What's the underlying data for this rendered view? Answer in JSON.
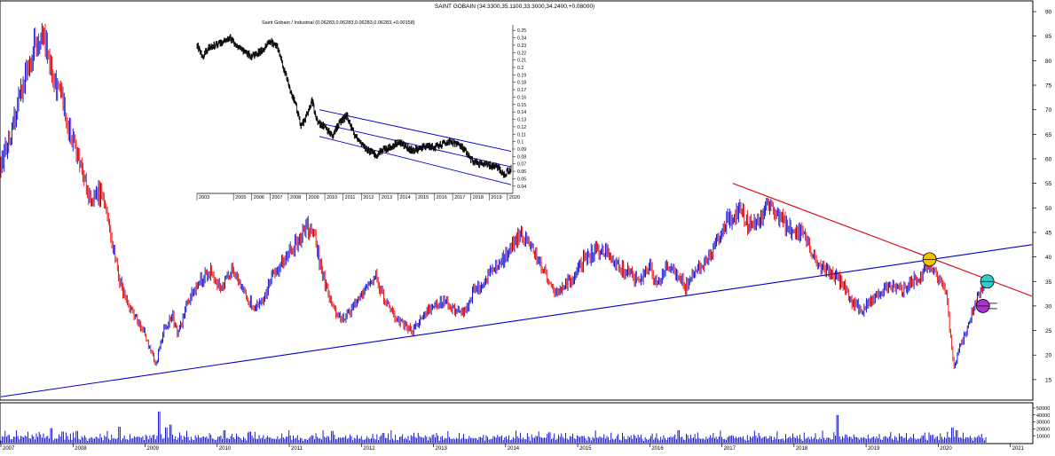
{
  "title": "SAINT GOBAIN (34.3300,35.1100,33.3000,34.2400,+0.08000)",
  "inset_title": "Saint Gobain / Industrial (0.06283,0.06283,0.06283,0.06283,+0.00158)",
  "colors": {
    "up_bar": "#0000cc",
    "down_bar": "#ee0000",
    "support_line": "#0000cc",
    "resistance_line": "#dd0000",
    "ratio_line": "#000000",
    "channel_line": "#0000cc",
    "marker_yellow": "#f2c200",
    "marker_cyan": "#33cccc",
    "marker_purple": "#aa33cc"
  },
  "chart_data": [
    {
      "type": "line",
      "name": "main-price",
      "ylim": [
        11,
        92
      ],
      "y_ticks": [
        15,
        20,
        25,
        30,
        35,
        40,
        45,
        50,
        55,
        60,
        65,
        70,
        75,
        80,
        85,
        90
      ],
      "x_ticks": [
        "2007",
        "2008",
        "2009",
        "2010",
        "2011",
        "2012",
        "2013",
        "2014",
        "2015",
        "2016",
        "2017",
        "2018",
        "2019",
        "2020",
        "2021"
      ],
      "xlim": [
        2007,
        2021.3
      ],
      "price_path": [
        [
          2007.0,
          59
        ],
        [
          2007.15,
          65
        ],
        [
          2007.3,
          74
        ],
        [
          2007.45,
          83
        ],
        [
          2007.58,
          85
        ],
        [
          2007.7,
          78
        ],
        [
          2007.85,
          72
        ],
        [
          2007.95,
          66
        ],
        [
          2008.1,
          58
        ],
        [
          2008.25,
          52
        ],
        [
          2008.4,
          53
        ],
        [
          2008.55,
          42
        ],
        [
          2008.65,
          35
        ],
        [
          2008.75,
          31
        ],
        [
          2008.85,
          28
        ],
        [
          2008.95,
          26
        ],
        [
          2009.1,
          20
        ],
        [
          2009.15,
          18
        ],
        [
          2009.25,
          25
        ],
        [
          2009.38,
          28
        ],
        [
          2009.45,
          24
        ],
        [
          2009.6,
          31
        ],
        [
          2009.75,
          35
        ],
        [
          2009.9,
          37
        ],
        [
          2010.05,
          34
        ],
        [
          2010.2,
          37
        ],
        [
          2010.35,
          33
        ],
        [
          2010.5,
          30
        ],
        [
          2010.65,
          32
        ],
        [
          2010.8,
          37
        ],
        [
          2011.0,
          41
        ],
        [
          2011.15,
          44
        ],
        [
          2011.25,
          46
        ],
        [
          2011.35,
          44
        ],
        [
          2011.45,
          37
        ],
        [
          2011.58,
          30
        ],
        [
          2011.75,
          27
        ],
        [
          2011.9,
          30
        ],
        [
          2012.05,
          34
        ],
        [
          2012.2,
          36
        ],
        [
          2012.3,
          32
        ],
        [
          2012.45,
          28
        ],
        [
          2012.6,
          26
        ],
        [
          2012.72,
          25
        ],
        [
          2012.85,
          28
        ],
        [
          2013.0,
          30
        ],
        [
          2013.15,
          31
        ],
        [
          2013.3,
          29
        ],
        [
          2013.45,
          29
        ],
        [
          2013.55,
          33
        ],
        [
          2013.7,
          35
        ],
        [
          2013.85,
          38
        ],
        [
          2014.0,
          40
        ],
        [
          2014.1,
          43
        ],
        [
          2014.2,
          45
        ],
        [
          2014.35,
          42
        ],
        [
          2014.5,
          38
        ],
        [
          2014.6,
          35
        ],
        [
          2014.7,
          32
        ],
        [
          2014.82,
          34
        ],
        [
          2014.95,
          36
        ],
        [
          2015.1,
          40
        ],
        [
          2015.25,
          41
        ],
        [
          2015.4,
          41
        ],
        [
          2015.55,
          38
        ],
        [
          2015.7,
          37
        ],
        [
          2015.85,
          35
        ],
        [
          2016.0,
          38
        ],
        [
          2016.1,
          34
        ],
        [
          2016.25,
          38
        ],
        [
          2016.4,
          36
        ],
        [
          2016.5,
          34
        ],
        [
          2016.6,
          37
        ],
        [
          2016.75,
          38
        ],
        [
          2016.9,
          42
        ],
        [
          2017.0,
          46
        ],
        [
          2017.12,
          48
        ],
        [
          2017.25,
          50
        ],
        [
          2017.35,
          47
        ],
        [
          2017.5,
          47
        ],
        [
          2017.65,
          51
        ],
        [
          2017.8,
          48
        ],
        [
          2017.9,
          46
        ],
        [
          2018.0,
          45
        ],
        [
          2018.12,
          45
        ],
        [
          2018.25,
          40
        ],
        [
          2018.38,
          38
        ],
        [
          2018.5,
          37
        ],
        [
          2018.65,
          35
        ],
        [
          2018.8,
          31
        ],
        [
          2018.95,
          29
        ],
        [
          2019.05,
          31
        ],
        [
          2019.2,
          33
        ],
        [
          2019.35,
          34
        ],
        [
          2019.5,
          33
        ],
        [
          2019.62,
          35
        ],
        [
          2019.75,
          36
        ],
        [
          2019.85,
          38
        ],
        [
          2019.95,
          37
        ],
        [
          2020.05,
          35
        ],
        [
          2020.12,
          32
        ],
        [
          2020.18,
          22
        ],
        [
          2020.22,
          17
        ],
        [
          2020.3,
          22
        ],
        [
          2020.4,
          25
        ],
        [
          2020.5,
          30
        ],
        [
          2020.58,
          33
        ],
        [
          2020.65,
          34.2
        ]
      ],
      "support_line": [
        [
          2007.0,
          11.5
        ],
        [
          2021.3,
          42.5
        ]
      ],
      "resistance_line": [
        [
          2017.15,
          55
        ],
        [
          2021.3,
          32
        ]
      ],
      "markers": [
        {
          "x": 2019.88,
          "y": 39.5,
          "color": "marker_yellow"
        },
        {
          "x": 2020.68,
          "y": 35.0,
          "color": "marker_cyan"
        },
        {
          "x": 2020.62,
          "y": 30.0,
          "color": "marker_purple"
        }
      ]
    },
    {
      "type": "bar",
      "name": "volume",
      "ylim": [
        0,
        55000
      ],
      "y_ticks": [
        50000,
        40000,
        30000,
        20000,
        10000
      ],
      "baseline_pattern": [
        6000,
        9000,
        7000,
        12000,
        8000,
        5000,
        10000,
        7000
      ],
      "spikes": [
        [
          2007.1,
          11000
        ],
        [
          2007.7,
          21000
        ],
        [
          2007.85,
          16000
        ],
        [
          2008.05,
          17000
        ],
        [
          2008.65,
          23000
        ],
        [
          2009.2,
          45000
        ],
        [
          2009.3,
          22000
        ],
        [
          2009.35,
          26000
        ],
        [
          2010.1,
          18000
        ],
        [
          2010.45,
          16000
        ],
        [
          2011.6,
          17000
        ],
        [
          2012.3,
          14000
        ],
        [
          2013.0,
          11000
        ],
        [
          2014.6,
          15000
        ],
        [
          2016.4,
          18000
        ],
        [
          2017.15,
          10000
        ],
        [
          2018.6,
          40000
        ],
        [
          2019.9,
          11000
        ],
        [
          2020.2,
          22000
        ],
        [
          2020.25,
          18000
        ]
      ]
    },
    {
      "type": "line",
      "name": "ratio-inset",
      "title": "Saint Gobain / Industrial (0.06283,0.06283,0.06283,0.06283,+0.00158)",
      "ylim": [
        0.035,
        0.255
      ],
      "y_ticks": [
        0.25,
        0.24,
        0.23,
        0.22,
        0.21,
        0.2,
        0.19,
        0.18,
        0.17,
        0.16,
        0.15,
        0.14,
        0.13,
        0.12,
        0.11,
        0.1,
        0.09,
        0.08,
        0.07,
        0.06,
        0.05,
        0.04
      ],
      "x_ticks": [
        "2003",
        "2005",
        "2006",
        "2007",
        "2008",
        "2009",
        "2010",
        "2011",
        "2012",
        "2013",
        "2014",
        "2015",
        "2016",
        "2017",
        "2018",
        "2019",
        "2020"
      ],
      "xlim": [
        2003.0,
        2020.2
      ],
      "ratio_path": [
        [
          2003.0,
          0.23
        ],
        [
          2003.3,
          0.215
        ],
        [
          2003.6,
          0.225
        ],
        [
          2004.0,
          0.23
        ],
        [
          2004.4,
          0.235
        ],
        [
          2004.8,
          0.24
        ],
        [
          2005.2,
          0.228
        ],
        [
          2005.6,
          0.22
        ],
        [
          2006.0,
          0.215
        ],
        [
          2006.5,
          0.222
        ],
        [
          2007.0,
          0.235
        ],
        [
          2007.4,
          0.228
        ],
        [
          2007.8,
          0.195
        ],
        [
          2008.1,
          0.17
        ],
        [
          2008.4,
          0.15
        ],
        [
          2008.7,
          0.12
        ],
        [
          2009.0,
          0.135
        ],
        [
          2009.3,
          0.155
        ],
        [
          2009.6,
          0.125
        ],
        [
          2010.0,
          0.12
        ],
        [
          2010.4,
          0.108
        ],
        [
          2010.8,
          0.125
        ],
        [
          2011.2,
          0.135
        ],
        [
          2011.6,
          0.11
        ],
        [
          2012.0,
          0.095
        ],
        [
          2012.4,
          0.088
        ],
        [
          2012.8,
          0.082
        ],
        [
          2013.2,
          0.09
        ],
        [
          2013.6,
          0.092
        ],
        [
          2014.0,
          0.1
        ],
        [
          2014.4,
          0.094
        ],
        [
          2014.8,
          0.088
        ],
        [
          2015.2,
          0.09
        ],
        [
          2015.6,
          0.095
        ],
        [
          2016.0,
          0.092
        ],
        [
          2016.4,
          0.096
        ],
        [
          2016.8,
          0.1
        ],
        [
          2017.2,
          0.098
        ],
        [
          2017.6,
          0.09
        ],
        [
          2018.0,
          0.075
        ],
        [
          2018.5,
          0.07
        ],
        [
          2019.0,
          0.068
        ],
        [
          2019.5,
          0.065
        ],
        [
          2019.8,
          0.055
        ],
        [
          2020.0,
          0.06
        ],
        [
          2020.2,
          0.063
        ]
      ],
      "channel_upper": [
        [
          2009.7,
          0.143
        ],
        [
          2020.2,
          0.087
        ]
      ],
      "channel_mid": [
        [
          2009.7,
          0.125
        ],
        [
          2020.2,
          0.066
        ]
      ],
      "channel_lower": [
        [
          2009.7,
          0.107
        ],
        [
          2020.2,
          0.042
        ]
      ]
    }
  ]
}
